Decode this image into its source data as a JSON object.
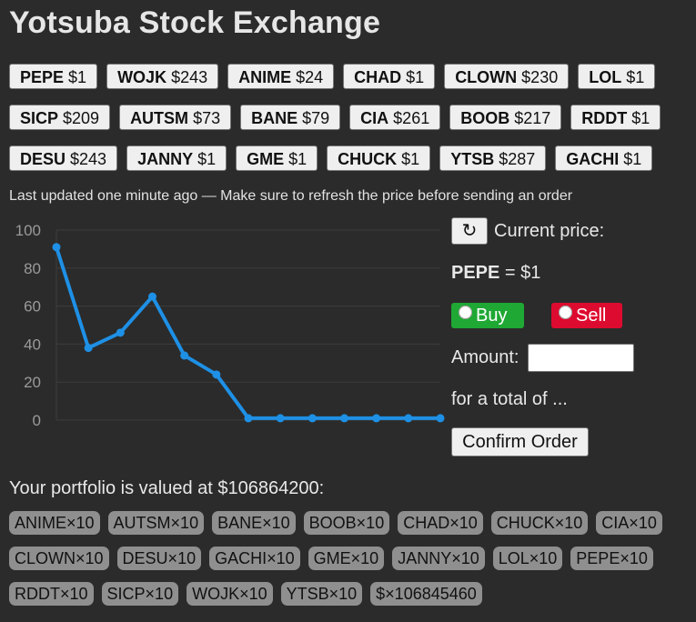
{
  "title": "Yotsuba Stock Exchange",
  "stocks": [
    [
      {
        "sym": "PEPE",
        "price": "$1"
      },
      {
        "sym": "WOJK",
        "price": "$243"
      },
      {
        "sym": "ANIME",
        "price": "$24"
      },
      {
        "sym": "CHAD",
        "price": "$1"
      },
      {
        "sym": "CLOWN",
        "price": "$230"
      },
      {
        "sym": "LOL",
        "price": "$1"
      }
    ],
    [
      {
        "sym": "SICP",
        "price": "$209"
      },
      {
        "sym": "AUTSM",
        "price": "$73"
      },
      {
        "sym": "BANE",
        "price": "$79"
      },
      {
        "sym": "CIA",
        "price": "$261"
      },
      {
        "sym": "BOOB",
        "price": "$217"
      },
      {
        "sym": "RDDT",
        "price": "$1"
      }
    ],
    [
      {
        "sym": "DESU",
        "price": "$243"
      },
      {
        "sym": "JANNY",
        "price": "$1"
      },
      {
        "sym": "GME",
        "price": "$1"
      },
      {
        "sym": "CHUCK",
        "price": "$1"
      },
      {
        "sym": "YTSB",
        "price": "$287"
      },
      {
        "sym": "GACHI",
        "price": "$1"
      }
    ]
  ],
  "note": "Last updated one minute ago — Make sure to refresh the price before sending an order",
  "panel": {
    "refresh_icon": "↻",
    "current_label": "Current price:",
    "selected_symbol": "PEPE",
    "selected_price_text": " = $1",
    "buy_label": "Buy",
    "sell_label": "Sell",
    "amount_label": "Amount:",
    "amount_value": "",
    "total_label": "for a total of ...",
    "confirm_label": "Confirm Order"
  },
  "portfolio": {
    "title": "Your portfolio is valued at $106864200:",
    "rows": [
      [
        "ANIME×10",
        "AUTSM×10",
        "BANE×10",
        "BOOB×10",
        "CHAD×10",
        "CHUCK×10",
        "CIA×10"
      ],
      [
        "CLOWN×10",
        "DESU×10",
        "GACHI×10",
        "GME×10",
        "JANNY×10",
        "LOL×10",
        "PEPE×10"
      ],
      [
        "RDDT×10",
        "SICP×10",
        "WOJK×10",
        "YTSB×10",
        "$×106845460"
      ]
    ]
  },
  "colors": {
    "line": "#1e90e6",
    "buy": "#1fa834",
    "sell": "#dd0b2f",
    "background": "#2b2b2b"
  },
  "chart_data": {
    "type": "line",
    "title": "",
    "xlabel": "",
    "ylabel": "",
    "ylim": [
      0,
      100
    ],
    "yticks": [
      0,
      20,
      40,
      60,
      80,
      100
    ],
    "grid": true,
    "series": [
      {
        "values": [
          91,
          38,
          46,
          65,
          34,
          24,
          1,
          1,
          1,
          1,
          1,
          1,
          1
        ]
      }
    ]
  }
}
